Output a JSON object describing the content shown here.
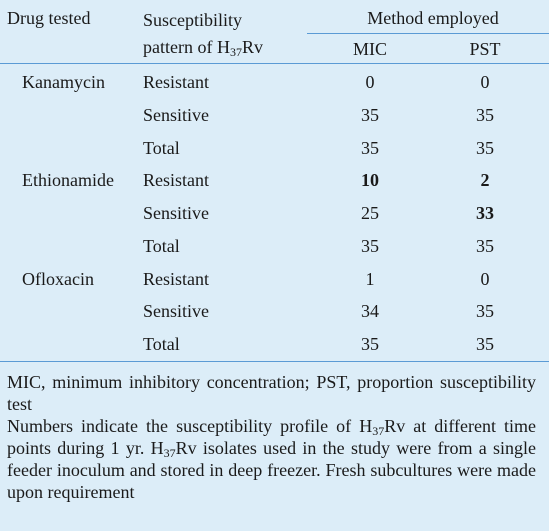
{
  "header": {
    "drug": "Drug tested",
    "pattern": [
      "Susceptibility",
      "pattern of H",
      "37",
      "Rv"
    ],
    "method": "Method employed",
    "mic": "MIC",
    "pst": "PST"
  },
  "table": {
    "rows": [
      [
        "Kanamycin",
        "Resistant",
        0,
        0
      ],
      [
        null,
        "Sensitive",
        35,
        35
      ],
      [
        null,
        "Total",
        35,
        35
      ],
      [
        "Ethionamide",
        "Resistant",
        10,
        2
      ],
      [
        null,
        "Sensitive",
        25,
        33
      ],
      [
        null,
        "Total",
        35,
        35
      ],
      [
        "Ofloxacin",
        "Resistant",
        1,
        0
      ],
      [
        null,
        "Sensitive",
        34,
        35
      ],
      [
        null,
        "Total",
        35,
        35
      ]
    ],
    "bold_cells": [
      [
        3,
        2
      ],
      [
        3,
        3
      ],
      [
        4,
        3
      ]
    ]
  },
  "notes": {
    "abbreviations": "MIC, minimum inhibitory concentration; PST, proportion susceptibility test",
    "description": [
      "Numbers indicate the susceptibility profile of H",
      "37",
      "Rv at different time points during 1 yr. H",
      "37",
      "Rv isolates used in the study were from a single feeder inoculum and stored in deep freezer. Fresh subcultures were made upon requirement"
    ]
  }
}
